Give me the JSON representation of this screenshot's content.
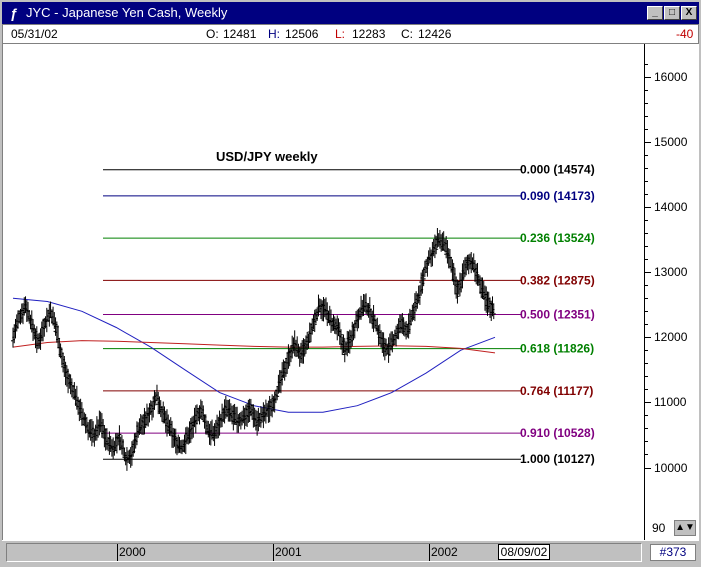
{
  "window": {
    "title": "JYC - Japanese Yen Cash, Weekly",
    "controls": [
      "_",
      "□",
      "X"
    ]
  },
  "info": {
    "date": "05/31/02",
    "open_label": "O:",
    "open": "12481",
    "high_label": "H:",
    "high": "12506",
    "low_label": "L:",
    "low": "12283",
    "close_label": "C:",
    "close": "12426",
    "change": "-40"
  },
  "colors": {
    "titlebar": "#000080",
    "price": "#000000",
    "ma_long": "#2020c0",
    "ma_mid": "#c02020"
  },
  "chart_data": {
    "type": "line",
    "title": "USD/JPY weekly",
    "y_axis": {
      "ticks": [
        10000,
        11000,
        12000,
        13000,
        14000,
        15000,
        16000
      ],
      "range": [
        9500,
        16300
      ],
      "position": "right"
    },
    "x_axis": {
      "ticks": [
        "2000",
        "2001",
        "2002"
      ],
      "range_label": "08/09/02"
    },
    "fibonacci_levels": [
      {
        "ratio": "0.000",
        "value": 14574,
        "label": "0.000 (14574)",
        "color": "#000000"
      },
      {
        "ratio": "0.090",
        "value": 14173,
        "label": "0.090 (14173)",
        "color": "#000080"
      },
      {
        "ratio": "0.236",
        "value": 13524,
        "label": "0.236 (13524)",
        "color": "#008000"
      },
      {
        "ratio": "0.382",
        "value": 12875,
        "label": "0.382 (12875)",
        "color": "#800000"
      },
      {
        "ratio": "0.500",
        "value": 12351,
        "label": "0.500 (12351)",
        "color": "#800080"
      },
      {
        "ratio": "0.618",
        "value": 11826,
        "label": "0.618 (11826)",
        "color": "#008000"
      },
      {
        "ratio": "0.764",
        "value": 11177,
        "label": "0.764 (11177)",
        "color": "#800000"
      },
      {
        "ratio": "0.910",
        "value": 10528,
        "label": "0.910 (10528)",
        "color": "#800080"
      },
      {
        "ratio": "1.000",
        "value": 10127,
        "label": "1.000 (10127)",
        "color": "#000000"
      }
    ],
    "price_series": {
      "x_start": 0,
      "x_end": 100,
      "values": [
        12000,
        12300,
        12500,
        12200,
        11900,
        12200,
        12400,
        12100,
        11600,
        11300,
        11100,
        10800,
        10600,
        10500,
        10700,
        10400,
        10300,
        10450,
        10150,
        10200,
        10600,
        10700,
        10900,
        11100,
        10800,
        10600,
        10400,
        10300,
        10500,
        10700,
        10900,
        10600,
        10500,
        10700,
        10900,
        10800,
        10700,
        10800,
        10900,
        10700,
        10800,
        10900,
        11100,
        11400,
        11700,
        11900,
        11700,
        11900,
        12200,
        12500,
        12400,
        12200,
        12100,
        11800,
        12000,
        12300,
        12500,
        12400,
        12200,
        11900,
        11800,
        12000,
        12200,
        12100,
        12400,
        12700,
        13100,
        13300,
        13500,
        13400,
        13100,
        12700,
        13000,
        13200,
        13000,
        12700,
        12500,
        12400
      ]
    },
    "ma_long": {
      "values": [
        12600,
        12550,
        12400,
        12150,
        11850,
        11500,
        11150,
        10950,
        10850,
        10850,
        10950,
        11150,
        11450,
        11800,
        12000
      ]
    },
    "ma_mid": {
      "values": [
        11850,
        11920,
        11950,
        11940,
        11920,
        11900,
        11880,
        11860,
        11850,
        11850,
        11860,
        11870,
        11860,
        11830,
        11760
      ]
    },
    "annotations": [
      "USD/JPY weekly"
    ]
  },
  "footer": {
    "corner_value": "90",
    "end_date": "08/09/02",
    "bar_count": "#373"
  }
}
